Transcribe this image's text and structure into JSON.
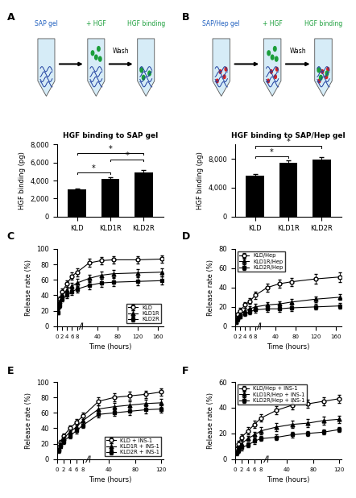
{
  "panel_labels": [
    "A",
    "B",
    "C",
    "D",
    "E",
    "F"
  ],
  "diagrams": [
    {
      "steps": [
        "SAP gel",
        "+ HGF",
        "HGF binding"
      ],
      "wash": "Wash",
      "heparin": false
    },
    {
      "steps": [
        "SAP/Hep gel",
        "+ HGF",
        "HGF binding"
      ],
      "wash": "Wash",
      "heparin": true
    }
  ],
  "chart_data": [
    {
      "type": "bar",
      "title": "HGF binding to SAP gel",
      "ylabel": "HGF binding (pg)",
      "categories": [
        "KLD",
        "KLD1R",
        "KLD2R"
      ],
      "values": [
        3000,
        4200,
        4900
      ],
      "errors": [
        150,
        200,
        250
      ],
      "color": "#000000",
      "ylim": [
        0,
        8000
      ],
      "yticks": [
        0,
        {
          "value": 2000,
          "label": "2,000"
        },
        {
          "value": 4000,
          "label": "4,000"
        },
        {
          "value": 6000,
          "label": "6,000"
        },
        {
          "value": 8000,
          "label": "8,000"
        }
      ],
      "significance": [
        {
          "between": [
            "KLD",
            "KLD1R"
          ],
          "label": "*"
        },
        {
          "between": [
            "KLD1R",
            "KLD2R"
          ],
          "label": "*"
        },
        {
          "between": [
            "KLD",
            "KLD2R"
          ],
          "label": "*"
        }
      ]
    },
    {
      "type": "bar",
      "title": "HGF binding to SAP/Hep gel",
      "ylabel": "HGF binding (pg)",
      "categories": [
        "KLD",
        "KLD1R",
        "KLD2R"
      ],
      "values": [
        5700,
        7500,
        7900
      ],
      "errors": [
        200,
        300,
        350
      ],
      "color": "#000000",
      "ylim": [
        0,
        10000
      ],
      "yticks": [
        0,
        {
          "value": 4000,
          "label": "4,000"
        },
        {
          "value": 8000,
          "label": "8,000"
        }
      ],
      "significance": [
        {
          "between": [
            "KLD",
            "KLD1R"
          ],
          "label": "*"
        },
        {
          "between": [
            "KLD",
            "KLD2R"
          ],
          "label": "*"
        }
      ]
    },
    {
      "type": "line",
      "xlabel": "Time (hours)",
      "ylabel": "Release rate (%)",
      "x": [
        0.5,
        1,
        2,
        4,
        6,
        8,
        24,
        48,
        72,
        120,
        168
      ],
      "series": [
        {
          "name": "KLD",
          "color": "#000000",
          "marker": "circle_open",
          "values": [
            28,
            35,
            45,
            55,
            65,
            70,
            82,
            85,
            86,
            86,
            87
          ],
          "errors": [
            3,
            3,
            4,
            4,
            5,
            5,
            5,
            5,
            5,
            5,
            5
          ]
        },
        {
          "name": "KLD1R",
          "color": "#000000",
          "marker": "triangle",
          "values": [
            25,
            32,
            40,
            47,
            52,
            56,
            62,
            66,
            68,
            69,
            70
          ],
          "errors": [
            3,
            3,
            4,
            4,
            4,
            5,
            5,
            5,
            5,
            5,
            5
          ]
        },
        {
          "name": "KLD2R",
          "color": "#000000",
          "marker": "square",
          "values": [
            18,
            27,
            35,
            40,
            45,
            48,
            53,
            56,
            57,
            58,
            59
          ],
          "errors": [
            3,
            3,
            3,
            4,
            4,
            4,
            5,
            5,
            5,
            5,
            5
          ]
        }
      ],
      "xlim": [
        0,
        172
      ],
      "xticks": [
        0,
        2,
        4,
        6,
        8,
        40,
        80,
        120,
        160
      ],
      "ylim": [
        0,
        100
      ],
      "yticks": [
        0,
        20,
        40,
        60,
        80,
        100
      ],
      "legend": "lower right"
    },
    {
      "type": "line",
      "xlabel": "Time (hours)",
      "ylabel": "Release rate (%)",
      "x": [
        0.5,
        1,
        2,
        4,
        6,
        8,
        24,
        48,
        72,
        120,
        168
      ],
      "series": [
        {
          "name": "KLD/Hep",
          "color": "#000000",
          "marker": "circle_open",
          "values": [
            8,
            12,
            16,
            22,
            26,
            32,
            40,
            44,
            46,
            49,
            51
          ],
          "errors": [
            2,
            2,
            3,
            3,
            3,
            4,
            4,
            4,
            4,
            5,
            5
          ]
        },
        {
          "name": "KLD1R/Hep",
          "color": "#000000",
          "marker": "triangle",
          "values": [
            5,
            9,
            12,
            16,
            18,
            20,
            22,
            23,
            25,
            28,
            30
          ],
          "errors": [
            2,
            2,
            2,
            3,
            3,
            3,
            3,
            3,
            3,
            3,
            3
          ]
        },
        {
          "name": "KLD2R/Hep",
          "color": "#000000",
          "marker": "square",
          "values": [
            4,
            7,
            10,
            13,
            15,
            17,
            18,
            18,
            19,
            20,
            21
          ],
          "errors": [
            2,
            2,
            2,
            2,
            3,
            3,
            3,
            3,
            3,
            3,
            3
          ]
        }
      ],
      "xlim": [
        0,
        172
      ],
      "xticks": [
        0,
        2,
        4,
        6,
        8,
        40,
        80,
        120,
        160
      ],
      "ylim": [
        0,
        80
      ],
      "yticks": [
        0,
        20,
        40,
        60,
        80
      ],
      "legend": "upper left"
    },
    {
      "type": "line",
      "xlabel": "Time (hours)",
      "ylabel": "Release rate (%)",
      "x": [
        0.5,
        1,
        2,
        4,
        6,
        8,
        24,
        48,
        72,
        96,
        120
      ],
      "series": [
        {
          "name": "KLD + INS-1",
          "color": "#000000",
          "marker": "circle_open",
          "values": [
            15,
            22,
            30,
            40,
            48,
            56,
            75,
            80,
            82,
            84,
            87
          ],
          "errors": [
            3,
            3,
            3,
            4,
            4,
            4,
            5,
            5,
            5,
            5,
            5
          ]
        },
        {
          "name": "KLD1R + INS-1",
          "color": "#000000",
          "marker": "triangle",
          "values": [
            13,
            20,
            27,
            35,
            42,
            50,
            65,
            68,
            70,
            72,
            73
          ],
          "errors": [
            3,
            3,
            3,
            4,
            4,
            4,
            5,
            5,
            5,
            5,
            5
          ]
        },
        {
          "name": "KLD2R + INS-1",
          "color": "#000000",
          "marker": "square",
          "values": [
            11,
            17,
            23,
            30,
            37,
            44,
            58,
            60,
            62,
            64,
            65
          ],
          "errors": [
            3,
            3,
            3,
            3,
            4,
            4,
            4,
            4,
            5,
            5,
            5
          ]
        }
      ],
      "xlim": [
        0,
        124
      ],
      "xticks": [
        0,
        2,
        4,
        6,
        8,
        40,
        80,
        120
      ],
      "ylim": [
        0,
        100
      ],
      "yticks": [
        0,
        20,
        40,
        60,
        80,
        100
      ],
      "legend": "lower right"
    },
    {
      "type": "line",
      "xlabel": "Time (hours)",
      "ylabel": "Release rate (%)",
      "x": [
        0.5,
        1,
        2,
        4,
        6,
        8,
        24,
        48,
        72,
        96,
        120
      ],
      "series": [
        {
          "name": "KLD/Hep + INS-1",
          "color": "#000000",
          "marker": "circle_open",
          "values": [
            8,
            12,
            17,
            22,
            27,
            32,
            38,
            42,
            43,
            45,
            47
          ],
          "errors": [
            2,
            2,
            2,
            3,
            3,
            3,
            3,
            3,
            3,
            3,
            3
          ]
        },
        {
          "name": "KLD1R/Hep + INS-1",
          "color": "#000000",
          "marker": "triangle",
          "values": [
            6,
            9,
            12,
            16,
            19,
            22,
            25,
            27,
            28,
            30,
            31
          ],
          "errors": [
            2,
            2,
            2,
            2,
            2,
            3,
            3,
            3,
            3,
            3,
            3
          ]
        },
        {
          "name": "KLD2R/Hep + INS-1",
          "color": "#000000",
          "marker": "square",
          "values": [
            5,
            7,
            9,
            11,
            14,
            16,
            17,
            19,
            20,
            21,
            23
          ],
          "errors": [
            2,
            2,
            2,
            2,
            2,
            2,
            2,
            2,
            2,
            2,
            2
          ]
        }
      ],
      "xlim": [
        0,
        124
      ],
      "xticks": [
        0,
        2,
        4,
        6,
        8,
        40,
        80,
        120
      ],
      "ylim": [
        0,
        60
      ],
      "yticks": [
        0,
        20,
        40,
        60
      ],
      "legend": "upper left"
    }
  ]
}
